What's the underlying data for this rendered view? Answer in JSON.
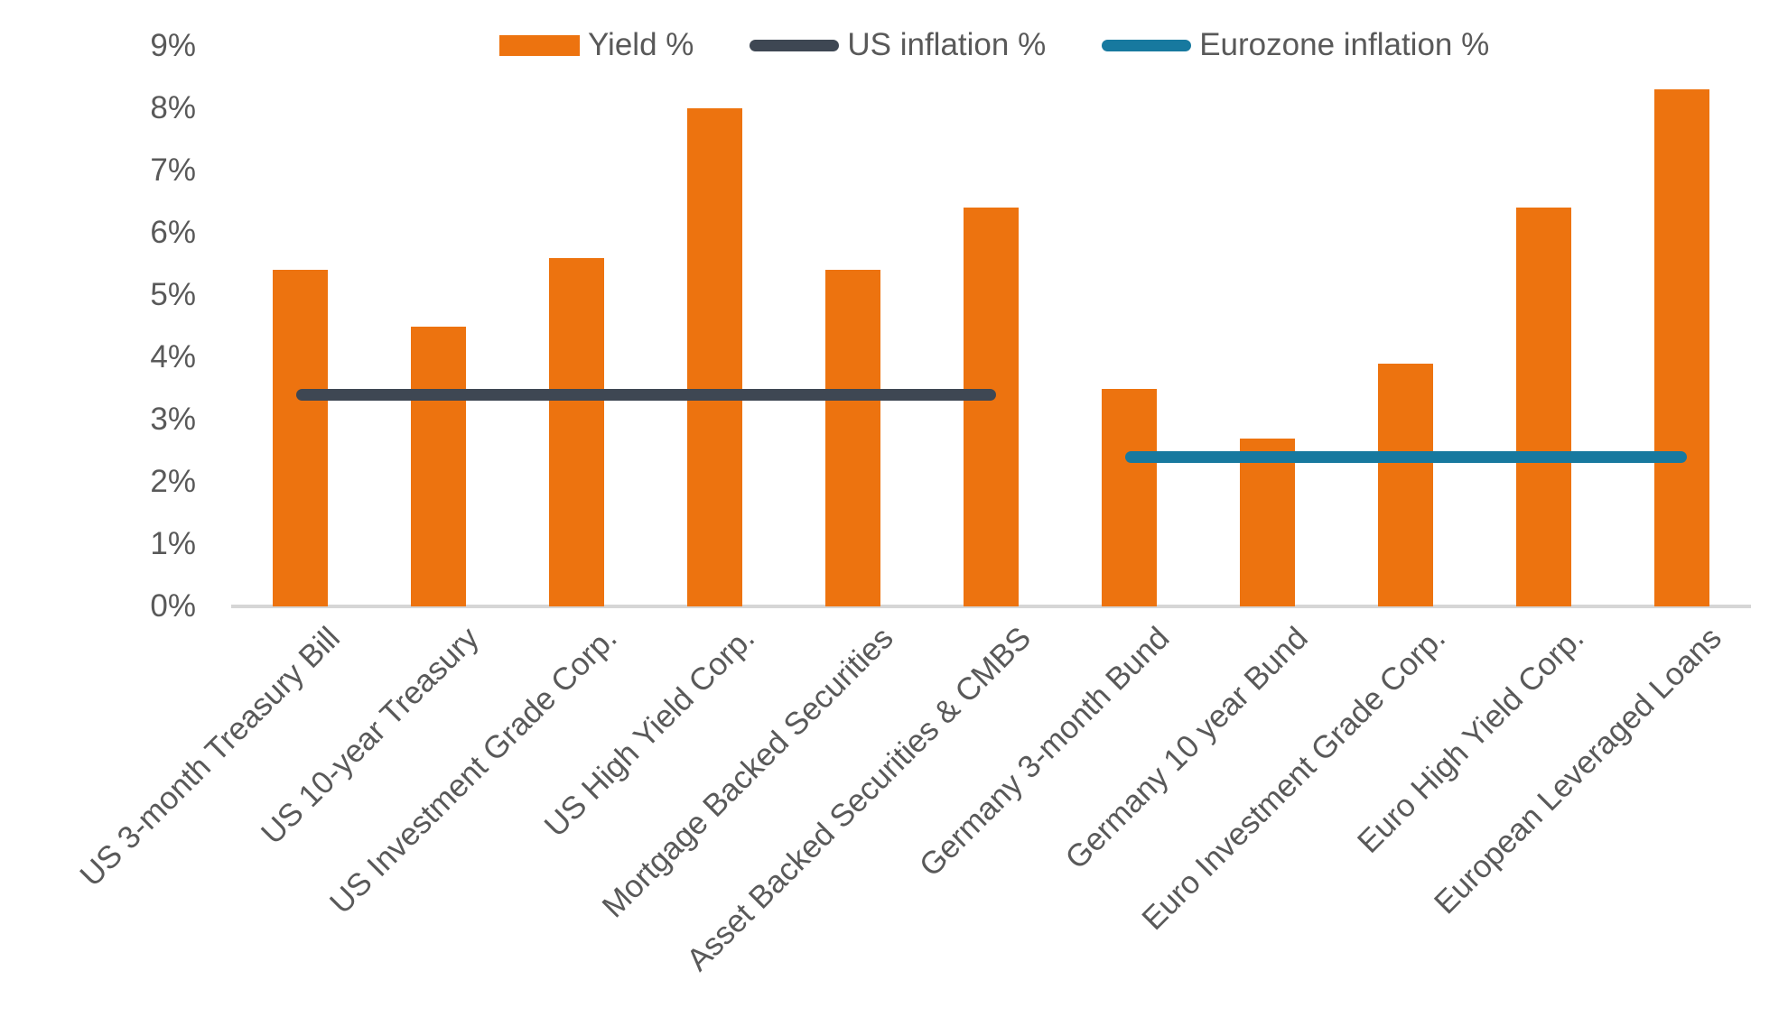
{
  "legend": [
    {
      "label": "Yield %",
      "type": "bar",
      "color": "#ED730F"
    },
    {
      "label": "US inflation %",
      "type": "line",
      "color": "#3E4753"
    },
    {
      "label": "Eurozone inflation %",
      "type": "line",
      "color": "#17799F"
    }
  ],
  "y_axis": {
    "ticks": [
      "9%",
      "8%",
      "7%",
      "6%",
      "5%",
      "4%",
      "3%",
      "2%",
      "1%",
      "0%"
    ]
  },
  "colors": {
    "bar": "#ED730F",
    "us_inflation_line": "#3E4753",
    "eurozone_inflation_line": "#17799F",
    "axis_line": "#D6D6D6",
    "text": "#595959"
  },
  "chart_data": {
    "type": "bar",
    "title": "",
    "xlabel": "",
    "ylabel": "",
    "ylim": [
      0,
      9
    ],
    "y_tick_step": 1,
    "y_tick_format": "percent",
    "grid": false,
    "legend_position": "top",
    "categories": [
      "US 3-month Treasury Bill",
      "US 10-year Treasury",
      "US Investment Grade Corp.",
      "US High Yield Corp.",
      "Mortgage Backed Securities",
      "Asset Backed Securities & CMBS",
      "Germany 3-month Bund",
      "Germany 10 year Bund",
      "Euro Investment Grade Corp.",
      "Euro High Yield Corp.",
      "European Leveraged Loans"
    ],
    "series": [
      {
        "name": "Yield %",
        "kind": "bar",
        "color": "#ED730F",
        "values": [
          5.4,
          4.5,
          5.6,
          8.0,
          5.4,
          6.4,
          3.5,
          2.7,
          3.9,
          6.4,
          8.3
        ]
      },
      {
        "name": "US inflation %",
        "kind": "line",
        "color": "#3E4753",
        "value": 3.4,
        "category_span": [
          0,
          5
        ]
      },
      {
        "name": "Eurozone inflation %",
        "kind": "line",
        "color": "#17799F",
        "value": 2.4,
        "category_span": [
          6,
          10
        ]
      }
    ]
  }
}
